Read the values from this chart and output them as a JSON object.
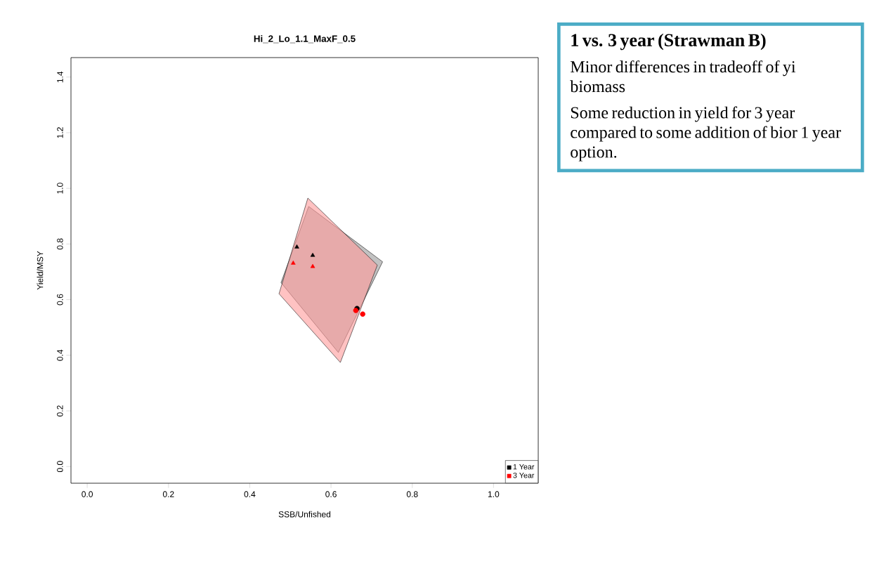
{
  "chart_data": {
    "type": "scatter",
    "title": "Hi_2_Lo_1.1_MaxF_0.5",
    "xlabel": "SSB/Unfished",
    "ylabel": "Yield/MSY",
    "xlim": [
      -0.04,
      1.11
    ],
    "ylim": [
      -0.06,
      1.47
    ],
    "xticks": [
      {
        "value": 0,
        "label": "0.0"
      },
      {
        "value": 0.2,
        "label": "0.2"
      },
      {
        "value": 0.4,
        "label": "0.4"
      },
      {
        "value": 0.6,
        "label": "0.6"
      },
      {
        "value": 0.8,
        "label": "0.8"
      },
      {
        "value": 1,
        "label": "1.0"
      }
    ],
    "yticks": [
      {
        "value": 0,
        "label": "0.0"
      },
      {
        "value": 0.2,
        "label": "0.2"
      },
      {
        "value": 0.4,
        "label": "0.4"
      },
      {
        "value": 0.6,
        "label": "0.6"
      },
      {
        "value": 0.8,
        "label": "0.8"
      },
      {
        "value": 1,
        "label": "1.0"
      },
      {
        "value": 1.2,
        "label": "1.2"
      },
      {
        "value": 1.4,
        "label": "1.4"
      }
    ],
    "grid": false,
    "legend": "bottom right",
    "series": [
      {
        "type": "area",
        "color": "#999999",
        "x": [
          0.545,
          0.727,
          0.618,
          0.477
        ],
        "values": [
          0.935,
          0.736,
          0.41,
          0.661
        ]
      },
      {
        "type": "area",
        "color": "#ff9999",
        "x": [
          0.543,
          0.714,
          0.623,
          0.472
        ],
        "values": [
          0.965,
          0.724,
          0.374,
          0.621
        ]
      },
      {
        "name": "1 Year",
        "marker": "triangle",
        "color": "#000000",
        "x": [
          0.516,
          0.555
        ],
        "values": [
          0.789,
          0.759
        ]
      },
      {
        "marker": "circle",
        "color": "#000000",
        "x": [
          0.664
        ],
        "values": [
          0.568
        ]
      },
      {
        "name": "3 Year",
        "marker": "triangle",
        "color": "#ff0000",
        "x": [
          0.507,
          0.555
        ],
        "values": [
          0.731,
          0.719
        ]
      },
      {
        "marker": "circle",
        "color": "#ff0000",
        "x": [
          0.661,
          0.678
        ],
        "values": [
          0.561,
          0.548
        ]
      }
    ],
    "annotations": [
      "1 vs. 3 year (Strawman B)",
      "Minor differences in tradeoff of yi biomass",
      "Some reduction in yield for 3 year compared to some addition of bior 1 year option."
    ]
  }
}
